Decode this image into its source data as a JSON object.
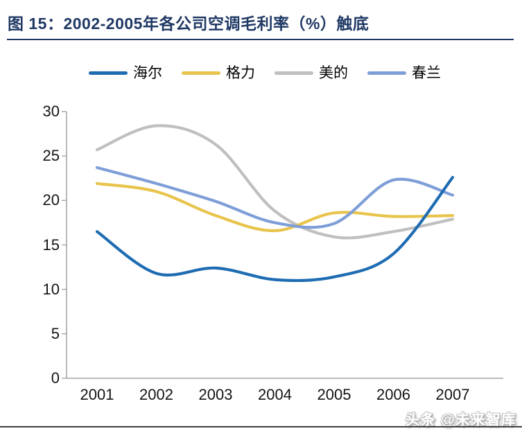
{
  "title": "图 15：2002-2005年各公司空调毛利率（%）触底",
  "watermark": "头条 @未来智库",
  "chart_data": {
    "type": "line",
    "title": "2002-2005年各公司空调毛利率（%）触底",
    "categories": [
      "2001",
      "2002",
      "2003",
      "2004",
      "2005",
      "2006",
      "2007"
    ],
    "series": [
      {
        "name": "海尔",
        "color": "#1e6cb2",
        "values": [
          16.5,
          11.8,
          12.4,
          11.1,
          11.4,
          14.0,
          22.6
        ]
      },
      {
        "name": "格力",
        "color": "#e8c44c",
        "values": [
          21.9,
          21.0,
          18.3,
          16.6,
          18.6,
          18.2,
          18.3
        ]
      },
      {
        "name": "美的",
        "color": "#bfbfbf",
        "values": [
          25.7,
          28.4,
          26.3,
          18.8,
          15.9,
          16.5,
          17.9
        ]
      },
      {
        "name": "春兰",
        "color": "#7e9ed8",
        "values": [
          23.7,
          21.9,
          19.9,
          17.5,
          17.4,
          22.3,
          20.6
        ]
      }
    ],
    "xlabel": "",
    "ylabel": "",
    "ylim": [
      0,
      30
    ],
    "yticks": [
      0,
      5,
      10,
      15,
      20,
      25,
      30
    ],
    "grid": false,
    "legend_position": "top",
    "axis_color": "#a6a6a6"
  }
}
